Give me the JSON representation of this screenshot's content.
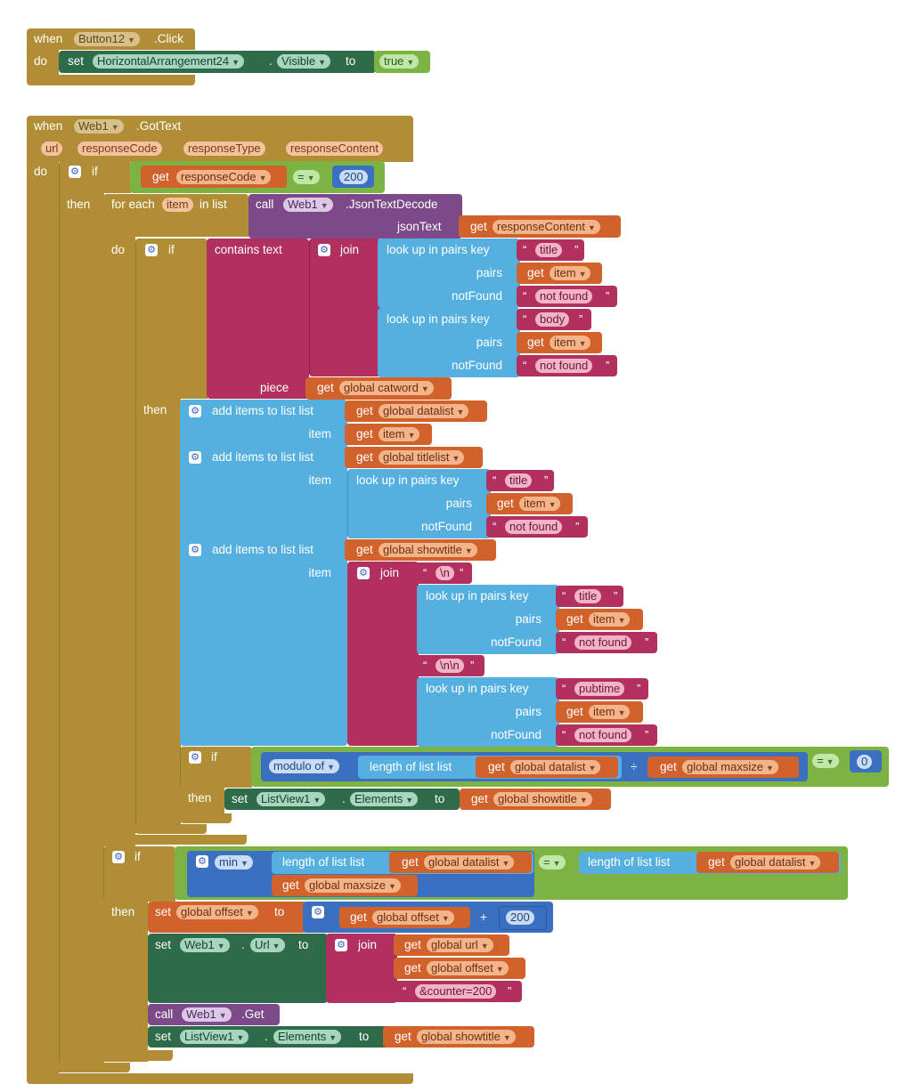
{
  "block1": {
    "when": "when",
    "component": "Button12",
    "event": ".Click",
    "do": "do",
    "set": "set",
    "target": "HorizontalArrangement24",
    "dot": ".",
    "property": "Visible",
    "to": "to",
    "value": "true"
  },
  "block2": {
    "when": "when",
    "component": "Web1",
    "event": ".GotText",
    "params": [
      "url",
      "responseCode",
      "responseType",
      "responseContent"
    ],
    "do": "do",
    "if": "if",
    "then": "then",
    "get": "get",
    "eq": "=",
    "responseCode": "responseCode",
    "code": "200",
    "foreach": "for each",
    "item": "item",
    "inlist": "in list",
    "call": "call",
    "web1": "Web1",
    "jsondecode": ".JsonTextDecode",
    "jsonText": "jsonText",
    "responseContent": "responseContent",
    "contains": "contains  text",
    "join": "join",
    "lookup": "look up in pairs  key",
    "pairs": "pairs",
    "notFound": "notFound",
    "title": "title",
    "body": "body",
    "notfoundval": "not found",
    "piece": "piece",
    "catword": "global catword",
    "additems": "add items to list  list",
    "itemlbl": "item",
    "datalist": "global datalist",
    "titlelist": "global titlelist",
    "showtitle": "global showtitle",
    "newline": "\\n",
    "dblnewline": "\\n\\n",
    "pubtime": "pubtime",
    "modulo": "modulo of",
    "lengthof": "length of list  list",
    "div": "÷",
    "maxsize": "global maxsize",
    "zero": "0",
    "set": "set",
    "listview": "ListView1",
    "elements": "Elements",
    "dot": ".",
    "to": "to",
    "min": "min",
    "offset": "global offset",
    "plus": "+",
    "n200": "200",
    "url": "Url",
    "globalurl": "global url",
    "counter": "&counter=200",
    "getm": ".Get"
  }
}
